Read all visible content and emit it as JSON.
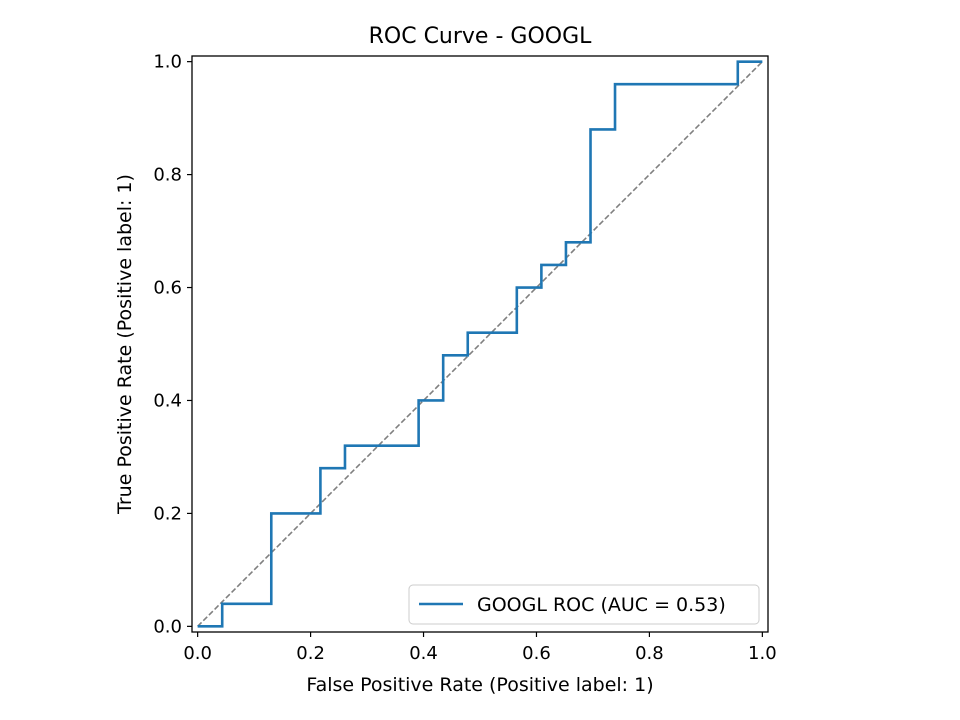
{
  "chart_data": {
    "type": "line",
    "title": "ROC Curve - GOOGL",
    "xlabel": "False Positive Rate (Positive label: 1)",
    "ylabel": "True Positive Rate (Positive label: 1)",
    "xlim": [
      -0.01,
      1.01
    ],
    "ylim": [
      -0.01,
      1.01
    ],
    "xticks": [
      0.0,
      0.2,
      0.4,
      0.6,
      0.8,
      1.0
    ],
    "yticks": [
      0.0,
      0.2,
      0.4,
      0.6,
      0.8,
      1.0
    ],
    "xtick_labels": [
      "0.0",
      "0.2",
      "0.4",
      "0.6",
      "0.8",
      "1.0"
    ],
    "ytick_labels": [
      "0.0",
      "0.2",
      "0.4",
      "0.6",
      "0.8",
      "1.0"
    ],
    "grid": false,
    "legend_position": "lower-right",
    "series": [
      {
        "name": "GOOGL ROC (AUC = 0.53)",
        "color": "#1f77b4",
        "style": "step",
        "x": [
          0.0,
          0.0435,
          0.0435,
          0.1304,
          0.1304,
          0.2174,
          0.2174,
          0.2609,
          0.2609,
          0.3913,
          0.3913,
          0.4348,
          0.4348,
          0.4783,
          0.4783,
          0.5652,
          0.5652,
          0.6087,
          0.6087,
          0.6522,
          0.6522,
          0.6957,
          0.6957,
          0.7391,
          0.7391,
          0.9565,
          0.9565,
          1.0
        ],
        "y": [
          0.0,
          0.0,
          0.04,
          0.04,
          0.2,
          0.2,
          0.28,
          0.28,
          0.32,
          0.32,
          0.4,
          0.4,
          0.48,
          0.48,
          0.52,
          0.52,
          0.6,
          0.6,
          0.64,
          0.64,
          0.68,
          0.68,
          0.88,
          0.88,
          0.96,
          0.96,
          1.0,
          1.0
        ]
      }
    ],
    "reference_line": {
      "x": [
        0.0,
        1.0
      ],
      "y": [
        0.0,
        1.0
      ],
      "color": "#808080",
      "dash": "dashed"
    }
  }
}
